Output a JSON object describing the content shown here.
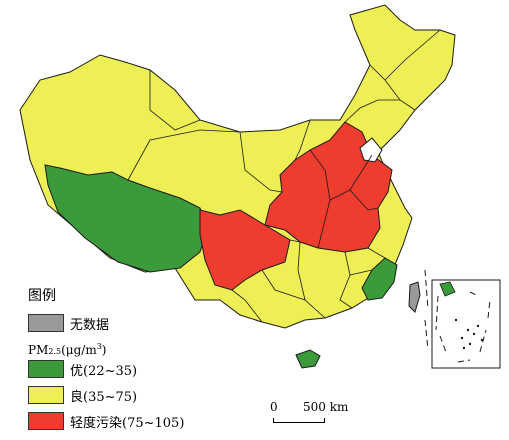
{
  "legend": {
    "title": "图例",
    "unit": {
      "base": "PM",
      "sub": "2.5",
      "open": "(μg/m",
      "sup": "3",
      "close": ")"
    },
    "items": [
      {
        "label": "无数据",
        "color": "#999999"
      },
      {
        "label": "优(22~35)",
        "color": "#3b9b3b"
      },
      {
        "label": "良(35~75)",
        "color": "#eeee55"
      },
      {
        "label": "轻度污染(75~105)",
        "color": "#ee3c2e"
      }
    ]
  },
  "scale_bar": {
    "zero": "0",
    "label": "500 km"
  },
  "map_colors": {
    "no_data": "#999999",
    "good": "#3b9b3b",
    "moderate": "#eeee55",
    "light_pollution": "#ee3c2e",
    "border": "#1a1a1a"
  }
}
